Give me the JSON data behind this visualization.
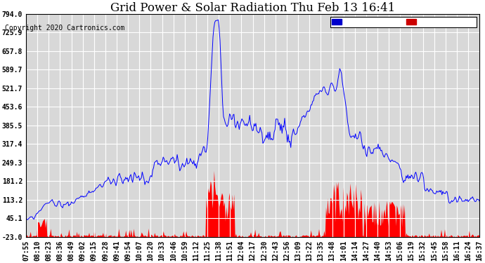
{
  "title": "Grid Power & Solar Radiation Thu Feb 13 16:41",
  "copyright": "Copyright 2020 Cartronics.com",
  "yticks": [
    794.0,
    725.9,
    657.8,
    589.7,
    521.7,
    453.6,
    385.5,
    317.4,
    249.3,
    181.2,
    113.2,
    45.1,
    -23.0
  ],
  "ylim": [
    -23.0,
    794.0
  ],
  "radiation_color": "#0000ff",
  "grid_color": "#ff0000",
  "bg_color": "#ffffff",
  "plot_bg_color": "#d8d8d8",
  "grid_line_color": "#ffffff",
  "legend_radiation_bg": "#0000cc",
  "legend_grid_bg": "#cc0000",
  "title_fontsize": 12,
  "tick_fontsize": 7,
  "copyright_fontsize": 7,
  "n_points": 520,
  "xtick_labels": [
    "07:55",
    "08:10",
    "08:23",
    "08:36",
    "08:49",
    "09:02",
    "09:15",
    "09:28",
    "09:41",
    "09:54",
    "10:07",
    "10:20",
    "10:33",
    "10:46",
    "10:59",
    "11:12",
    "11:25",
    "11:38",
    "11:51",
    "12:04",
    "12:17",
    "12:30",
    "12:43",
    "12:56",
    "13:09",
    "13:22",
    "13:35",
    "13:48",
    "14:01",
    "14:14",
    "14:27",
    "14:40",
    "14:53",
    "15:06",
    "15:19",
    "15:32",
    "15:45",
    "15:58",
    "16:11",
    "16:24",
    "16:37"
  ]
}
